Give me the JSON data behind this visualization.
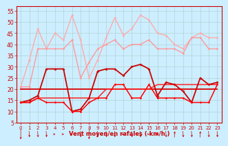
{
  "x": [
    0,
    1,
    2,
    3,
    4,
    5,
    6,
    7,
    8,
    9,
    10,
    11,
    12,
    13,
    14,
    15,
    16,
    17,
    18,
    19,
    20,
    21,
    22,
    23
  ],
  "ylim": [
    5,
    57
  ],
  "yticks": [
    5,
    10,
    15,
    20,
    25,
    30,
    35,
    40,
    45,
    50,
    55
  ],
  "xlim": [
    -0.5,
    23.5
  ],
  "xticks": [
    0,
    1,
    2,
    3,
    4,
    5,
    6,
    7,
    8,
    9,
    10,
    11,
    12,
    13,
    14,
    15,
    16,
    17,
    18,
    19,
    20,
    21,
    22,
    23
  ],
  "xlabel": "Vent moyen/en rafales ( km/h )",
  "bg_color": "#cceeff",
  "grid_color": "#aacccc",
  "tick_color": "#cc0000",
  "label_color": "#cc0000",
  "series": [
    {
      "name": "rafales_max_top",
      "color": "#ffaaaa",
      "lw": 1.0,
      "marker": "D",
      "ms": 1.8,
      "values": [
        21,
        33,
        47,
        38,
        45,
        42,
        53,
        42,
        25,
        33,
        43,
        52,
        44,
        47,
        53,
        51,
        45,
        44,
        40,
        38,
        43,
        45,
        43,
        43
      ]
    },
    {
      "name": "rafales_avg",
      "color": "#ff9999",
      "lw": 1.0,
      "marker": "D",
      "ms": 1.8,
      "values": [
        21,
        21,
        38,
        38,
        38,
        38,
        42,
        25,
        32,
        38,
        40,
        42,
        38,
        40,
        40,
        42,
        38,
        38,
        38,
        36,
        43,
        43,
        38,
        38
      ]
    },
    {
      "name": "vent_max_marker",
      "color": "#cc0000",
      "lw": 1.3,
      "marker": "D",
      "ms": 2.0,
      "values": [
        14,
        15,
        17,
        29,
        29,
        29,
        10,
        11,
        16,
        28,
        29,
        29,
        26,
        30,
        31,
        29,
        17,
        23,
        22,
        19,
        14,
        25,
        22,
        23
      ]
    },
    {
      "name": "vent_avg1",
      "color": "#dd0000",
      "lw": 1.3,
      "marker": null,
      "ms": 0,
      "values": [
        20,
        20,
        20,
        20,
        20,
        20,
        20,
        20,
        20,
        20,
        20,
        20,
        20,
        20,
        20,
        20,
        20,
        20,
        20,
        20,
        20,
        20,
        20,
        20
      ]
    },
    {
      "name": "vent_avg2",
      "color": "#ff2222",
      "lw": 1.1,
      "marker": null,
      "ms": 0,
      "values": [
        14,
        14,
        16,
        16,
        16,
        16,
        16,
        16,
        16,
        16,
        20,
        20,
        20,
        20,
        20,
        20,
        22,
        22,
        22,
        22,
        22,
        22,
        22,
        22
      ]
    },
    {
      "name": "vent_min_marker",
      "color": "#ff0000",
      "lw": 1.1,
      "marker": "D",
      "ms": 1.8,
      "values": [
        14,
        14,
        16,
        14,
        14,
        14,
        10,
        10,
        14,
        16,
        16,
        22,
        22,
        16,
        16,
        22,
        16,
        16,
        16,
        16,
        14,
        14,
        14,
        22
      ]
    }
  ]
}
